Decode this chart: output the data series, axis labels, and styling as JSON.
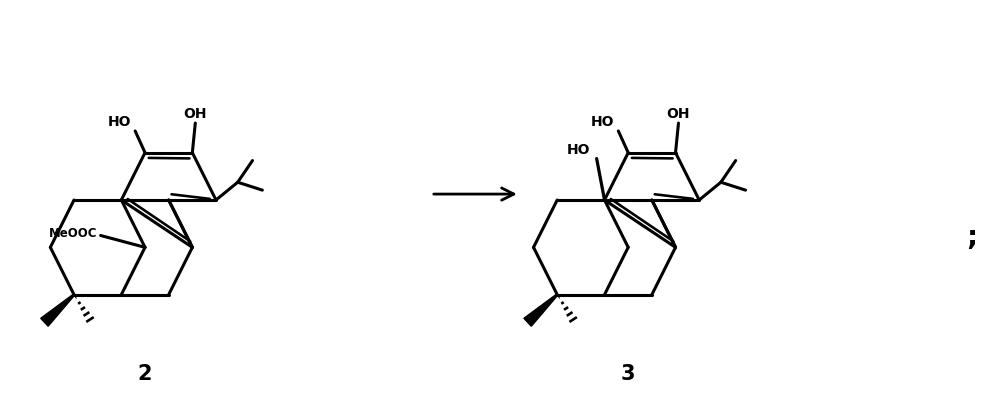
{
  "bg_color": "#ffffff",
  "line_color": "#000000",
  "line_width": 2.2,
  "label2": "2",
  "label3": "3",
  "semicolon": ";",
  "meooc_label": "MeOOC",
  "oh_label": "OH",
  "ho_label": "HO",
  "figsize": [
    10.0,
    3.99
  ],
  "dpi": 100
}
